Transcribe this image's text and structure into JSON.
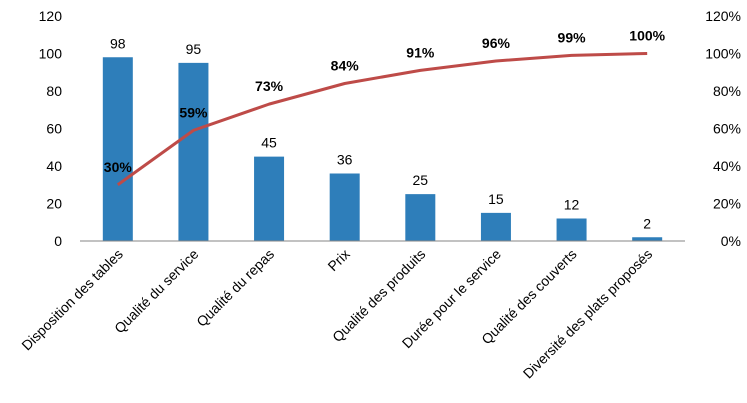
{
  "chart_data": {
    "type": "bar",
    "categories": [
      "Disposition des tables",
      "Qualité du service",
      "Qualité du repas",
      "Prix",
      "Qualité des produits",
      "Durée pour le service",
      "Qualité des couverts",
      "Diversité des plats proposés"
    ],
    "series": [
      {
        "type": "bar",
        "axis": "left",
        "values": [
          98,
          95,
          45,
          36,
          25,
          15,
          12,
          2
        ],
        "data_labels": [
          "98",
          "95",
          "45",
          "36",
          "25",
          "15",
          "12",
          "2"
        ],
        "color": "#2E7EBA"
      },
      {
        "type": "line",
        "axis": "right",
        "values": [
          30,
          59,
          73,
          84,
          91,
          96,
          99,
          100
        ],
        "data_labels": [
          "30%",
          "59%",
          "73%",
          "84%",
          "91%",
          "96%",
          "99%",
          "100%"
        ],
        "color": "#BE4B48"
      }
    ],
    "left_axis": {
      "min": 0,
      "max": 120,
      "step": 20,
      "tick_labels": [
        "0",
        "20",
        "40",
        "60",
        "80",
        "100",
        "120"
      ]
    },
    "right_axis": {
      "min": 0,
      "max": 120,
      "step": 20,
      "tick_labels": [
        "0%",
        "20%",
        "40%",
        "60%",
        "80%",
        "100%",
        "120%"
      ]
    },
    "grid": false,
    "legend": "none"
  }
}
